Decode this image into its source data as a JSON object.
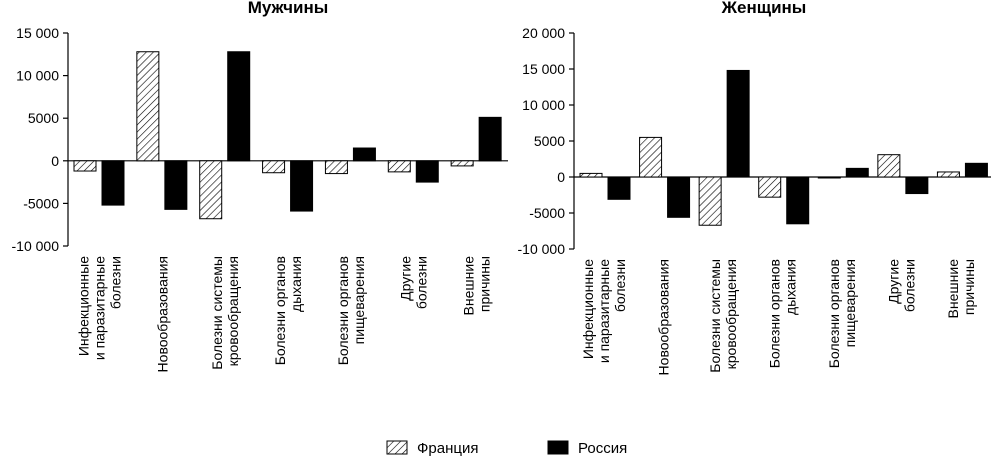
{
  "legend": [
    {
      "name": "Франция",
      "pattern": "hatch"
    },
    {
      "name": "Россия",
      "color": "#000000"
    }
  ],
  "chart_data": [
    {
      "type": "bar",
      "title": "Мужчины",
      "categories": [
        [
          "Инфекционные",
          "и паразитарные",
          "болезни"
        ],
        [
          "Новообразования"
        ],
        [
          "Болезни системы",
          "кровообращения"
        ],
        [
          "Болезни органов",
          "дыхания"
        ],
        [
          "Болезни органов",
          "пищеварения"
        ],
        [
          "Другие",
          "болезни"
        ],
        [
          "Внешние",
          "причины"
        ]
      ],
      "series": [
        {
          "name": "Франция",
          "values": [
            -1200,
            12800,
            -6800,
            -1400,
            -1500,
            -1300,
            -600
          ]
        },
        {
          "name": "Россия",
          "values": [
            -5200,
            -5700,
            12800,
            -5900,
            1500,
            -2500,
            5100
          ]
        }
      ],
      "ylim": [
        -10000,
        15000
      ],
      "yticks": [
        15000,
        10000,
        5000,
        0,
        -5000,
        -10000
      ],
      "ytick_labels": [
        "15 000",
        "10 000",
        "5000",
        "0",
        "-5000",
        "-10 000"
      ],
      "grid": false
    },
    {
      "type": "bar",
      "title": "Женщины",
      "categories": [
        [
          "Инфекционные",
          "и паразитарные",
          "болезни"
        ],
        [
          "Новообразования"
        ],
        [
          "Болезни системы",
          "кровообращения"
        ],
        [
          "Болезни органов",
          "дыхания"
        ],
        [
          "Болезни органов",
          "пищеварения"
        ],
        [
          "Другие",
          "болезни"
        ],
        [
          "Внешние",
          "причины"
        ]
      ],
      "series": [
        {
          "name": "Франция",
          "values": [
            500,
            5500,
            -6700,
            -2800,
            -100,
            3100,
            700
          ]
        },
        {
          "name": "Россия",
          "values": [
            -3100,
            -5600,
            14800,
            -6500,
            1200,
            -2300,
            1900
          ]
        }
      ],
      "ylim": [
        -10000,
        20000
      ],
      "yticks": [
        20000,
        15000,
        10000,
        5000,
        0,
        -5000,
        -10000
      ],
      "ytick_labels": [
        "20 000",
        "15 000",
        "10 000",
        "5000",
        "0",
        "-5000",
        "-10 000"
      ],
      "grid": false
    }
  ]
}
